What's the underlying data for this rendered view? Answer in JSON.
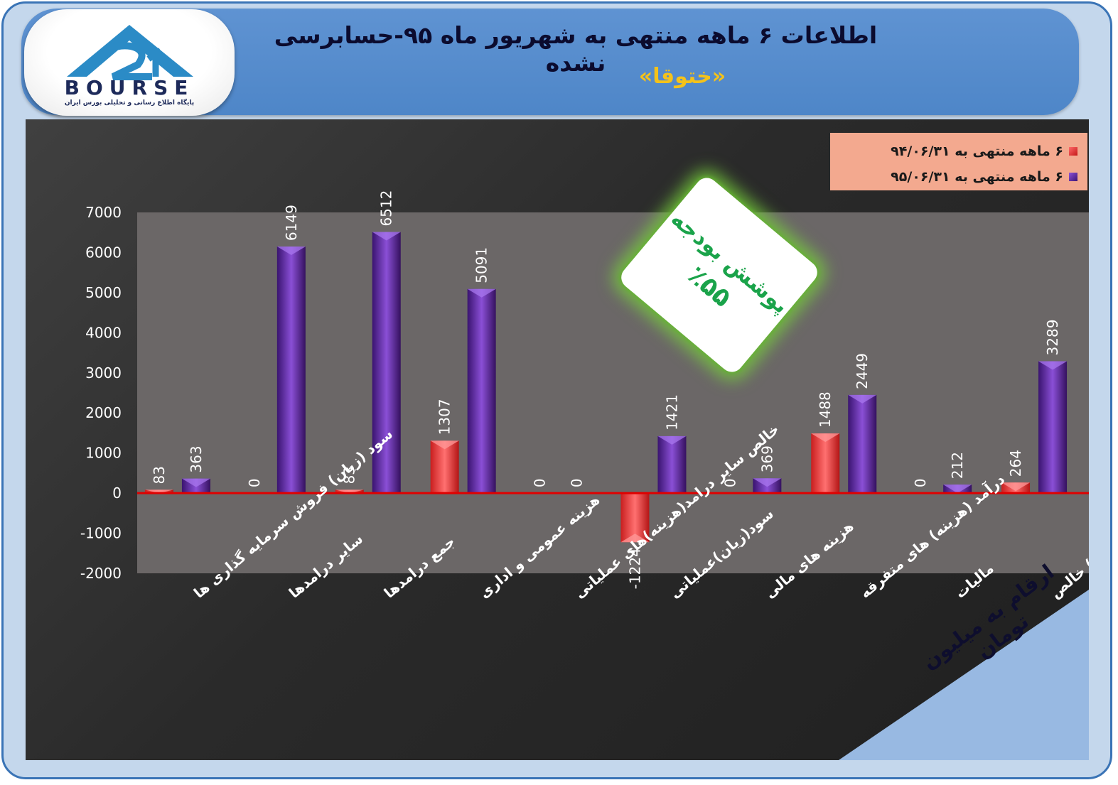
{
  "header": {
    "title": "اطلاعات ۶  ماهه منتهی به شهریور ماه ۹۵-حسابرسی نشده",
    "subtitle": "«ختوقا»",
    "logo_text": "BOURSE",
    "logo_caption": "پایگاه اطلاع رسانی و تحلیلی بورس ایران"
  },
  "badge": {
    "line1": "پوشش بودجه",
    "line2": "٪۵۵"
  },
  "corner_note": "ارقام به میلیون تومان",
  "colors": {
    "series1": "#ff4040",
    "series2": "#6b2fb0",
    "zero_line": "#e00000",
    "plot_bg": "#6b6767"
  },
  "chart_data": {
    "type": "bar",
    "categories": [
      "سود (زیان) فروش سرمایه گذاری ها",
      "سایر درامدها",
      "جمع درامدها",
      "هزینه عمومی و اداری",
      "خالص سایر درامد(هزینه)های عملیاتی",
      "سود(زیان)عملیاتی",
      "هزینه های مالی",
      "درآمد (هزینه) های متفرقه",
      "مالیات",
      "سود(زیان) خالص"
    ],
    "series": [
      {
        "name": "۶ ماهه منتهی به ۹۴/۰۶/۳۱",
        "values": [
          83,
          0,
          83,
          1307,
          0,
          -1224,
          0,
          1488,
          0,
          264
        ]
      },
      {
        "name": "۶ ماهه منتهی به ۹۵/۰۶/۳۱",
        "values": [
          363,
          6149,
          6512,
          5091,
          0,
          1421,
          369,
          2449,
          212,
          3289
        ]
      }
    ],
    "ylim": [
      -2000,
      7000
    ],
    "yticks": [
      7000,
      6000,
      5000,
      4000,
      3000,
      2000,
      1000,
      0,
      -1000,
      -2000
    ],
    "legend_position": "top-right",
    "grid": false
  }
}
